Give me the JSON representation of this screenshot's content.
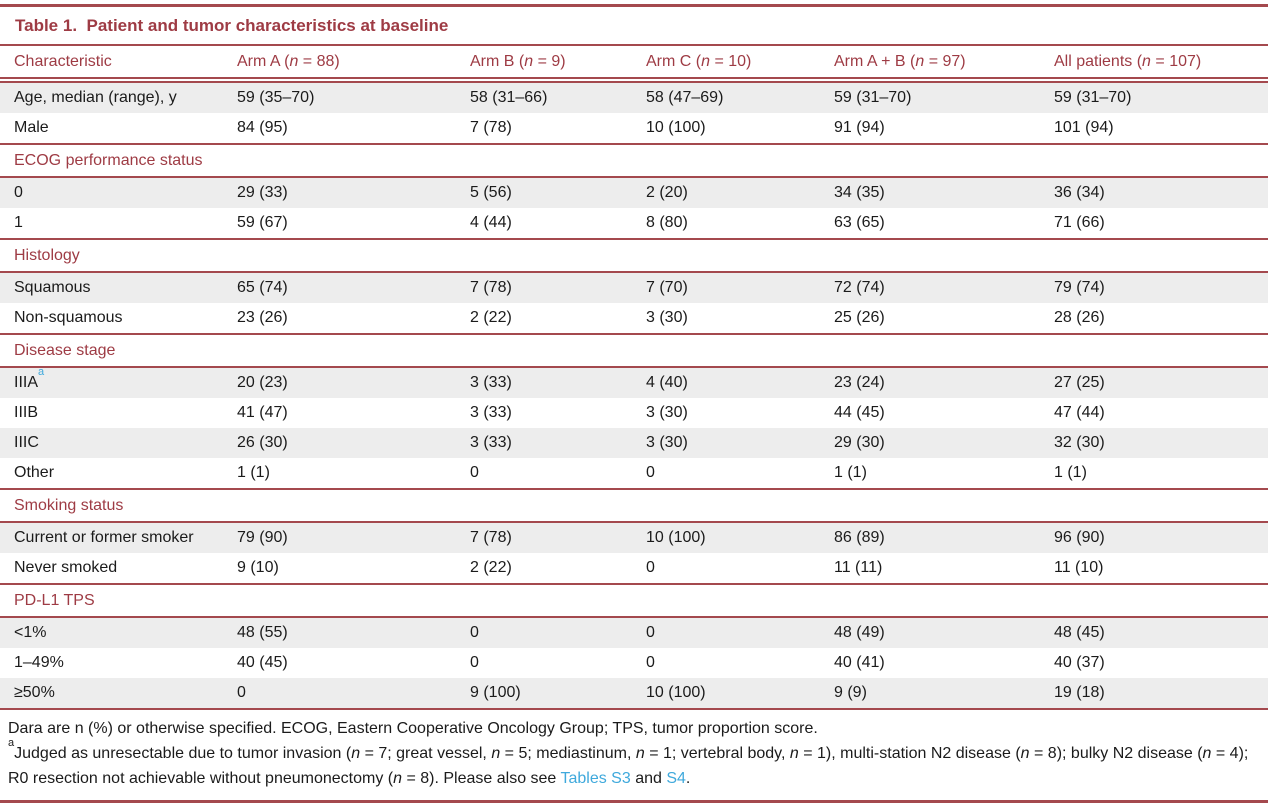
{
  "colors": {
    "maroon": "#a4494e",
    "maroon-text": "#9e3b44",
    "text": "#1b1b1b",
    "row-shade": "#ededed",
    "link-blue": "#3fa9dc"
  },
  "table": {
    "title": "Table 1.  Patient and tumor characteristics at baseline",
    "columns": [
      [
        {
          "t": "Characteristic"
        }
      ],
      [
        {
          "t": "Arm A ("
        },
        {
          "t": "n",
          "i": true
        },
        {
          "t": " = 88)"
        }
      ],
      [
        {
          "t": "Arm B ("
        },
        {
          "t": "n",
          "i": true
        },
        {
          "t": " = 9)"
        }
      ],
      [
        {
          "t": "Arm C ("
        },
        {
          "t": "n",
          "i": true
        },
        {
          "t": " = 10)"
        }
      ],
      [
        {
          "t": "Arm A + B ("
        },
        {
          "t": "n",
          "i": true
        },
        {
          "t": " = 97)"
        }
      ],
      [
        {
          "t": "All patients ("
        },
        {
          "t": "n",
          "i": true
        },
        {
          "t": " = 107)"
        }
      ]
    ],
    "rows": [
      {
        "type": "data",
        "label": [
          {
            "t": "Age, median (range), y"
          }
        ],
        "values": [
          "59 (35–70)",
          "58 (31–66)",
          "58 (47–69)",
          "59 (31–70)",
          "59 (31–70)"
        ]
      },
      {
        "type": "data",
        "label": [
          {
            "t": "Male"
          }
        ],
        "values": [
          "84 (95)",
          "7 (78)",
          "10 (100)",
          "91 (94)",
          "101 (94)"
        ]
      },
      {
        "type": "section",
        "label": [
          {
            "t": "ECOG performance status"
          }
        ]
      },
      {
        "type": "data",
        "label": [
          {
            "t": "0"
          }
        ],
        "values": [
          "29 (33)",
          "5 (56)",
          "2 (20)",
          "34 (35)",
          "36 (34)"
        ]
      },
      {
        "type": "data",
        "label": [
          {
            "t": "1"
          }
        ],
        "values": [
          "59 (67)",
          "4 (44)",
          "8 (80)",
          "63 (65)",
          "71 (66)"
        ]
      },
      {
        "type": "section",
        "label": [
          {
            "t": "Histology"
          }
        ]
      },
      {
        "type": "data",
        "label": [
          {
            "t": "Squamous"
          }
        ],
        "values": [
          "65 (74)",
          "7 (78)",
          "7 (70)",
          "72 (74)",
          "79 (74)"
        ]
      },
      {
        "type": "data",
        "label": [
          {
            "t": "Non-squamous"
          }
        ],
        "values": [
          "23 (26)",
          "2 (22)",
          "3 (30)",
          "25 (26)",
          "28 (26)"
        ]
      },
      {
        "type": "section",
        "label": [
          {
            "t": "Disease stage"
          }
        ]
      },
      {
        "type": "data",
        "label": [
          {
            "t": "IIIA"
          },
          {
            "t": "a",
            "sup": true,
            "blue": true
          }
        ],
        "values": [
          "20 (23)",
          "3 (33)",
          "4 (40)",
          "23 (24)",
          "27 (25)"
        ]
      },
      {
        "type": "data",
        "label": [
          {
            "t": "IIIB"
          }
        ],
        "values": [
          "41 (47)",
          "3 (33)",
          "3 (30)",
          "44 (45)",
          "47 (44)"
        ]
      },
      {
        "type": "data",
        "label": [
          {
            "t": "IIIC"
          }
        ],
        "values": [
          "26 (30)",
          "3 (33)",
          "3 (30)",
          "29 (30)",
          "32 (30)"
        ]
      },
      {
        "type": "data",
        "label": [
          {
            "t": "Other"
          }
        ],
        "values": [
          "1 (1)",
          "0",
          "0",
          "1 (1)",
          "1 (1)"
        ]
      },
      {
        "type": "section",
        "label": [
          {
            "t": "Smoking status"
          }
        ]
      },
      {
        "type": "data",
        "label": [
          {
            "t": "Current or former smoker"
          }
        ],
        "values": [
          "79 (90)",
          "7 (78)",
          "10 (100)",
          "86 (89)",
          "96 (90)"
        ]
      },
      {
        "type": "data",
        "label": [
          {
            "t": "Never smoked"
          }
        ],
        "values": [
          "9 (10)",
          "2 (22)",
          "0",
          "11 (11)",
          "11 (10)"
        ]
      },
      {
        "type": "section",
        "label": [
          {
            "t": "PD-L1 TPS"
          }
        ]
      },
      {
        "type": "data",
        "label": [
          {
            "t": "<1%"
          }
        ],
        "values": [
          "48 (55)",
          "0",
          "0",
          "48 (49)",
          "48 (45)"
        ]
      },
      {
        "type": "data",
        "label": [
          {
            "t": "1–49%"
          }
        ],
        "values": [
          "40 (45)",
          "0",
          "0",
          "40 (41)",
          "40 (37)"
        ]
      },
      {
        "type": "data",
        "label": [
          {
            "t": "≥50%"
          }
        ],
        "values": [
          "0",
          "9 (100)",
          "10 (100)",
          "9 (9)",
          "19 (18)"
        ]
      }
    ],
    "footnotes": [
      [
        {
          "t": "Dara are n (%) or otherwise specified. ECOG, Eastern Cooperative Oncology Group; TPS, tumor proportion score."
        }
      ],
      [
        {
          "t": "a",
          "sup": true
        },
        {
          "t": "Judged as unresectable due to tumor invasion ("
        },
        {
          "t": "n",
          "i": true
        },
        {
          "t": " = 7; great vessel, "
        },
        {
          "t": "n",
          "i": true
        },
        {
          "t": " = 5; mediastinum, "
        },
        {
          "t": "n",
          "i": true
        },
        {
          "t": " = 1; vertebral body, "
        },
        {
          "t": "n",
          "i": true
        },
        {
          "t": " = 1), multi-station N2 disease ("
        },
        {
          "t": "n",
          "i": true
        },
        {
          "t": " = 8); bulky N2 disease ("
        },
        {
          "t": "n",
          "i": true
        },
        {
          "t": " = 4); R0 resection not achievable without pneumonectomy ("
        },
        {
          "t": "n",
          "i": true
        },
        {
          "t": " = 8). Please also see "
        },
        {
          "t": "Tables S3",
          "link": true
        },
        {
          "t": " and "
        },
        {
          "t": "S4",
          "link": true
        },
        {
          "t": "."
        }
      ]
    ]
  }
}
